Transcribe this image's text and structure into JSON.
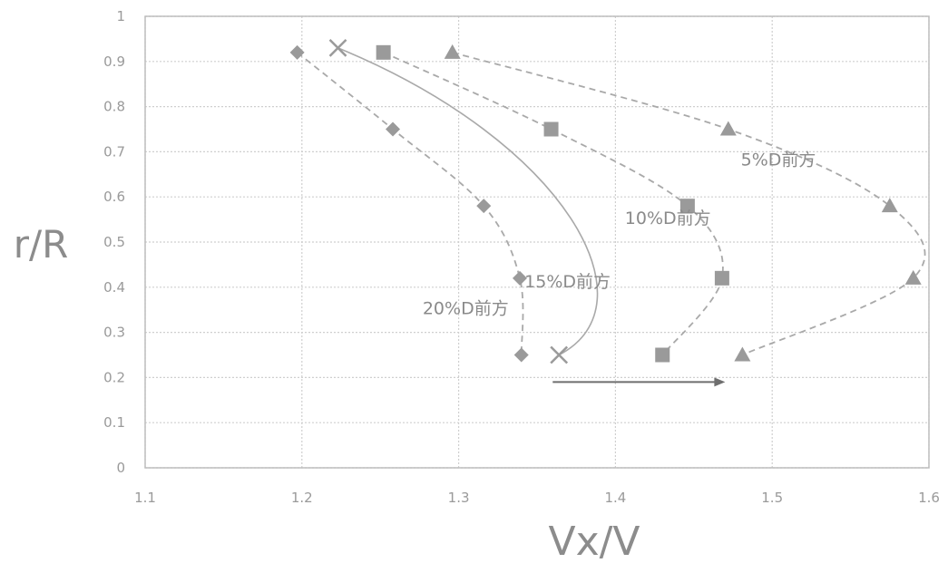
{
  "chart_data": {
    "type": "scatter",
    "title": "",
    "xlabel": "Vx/V",
    "ylabel": "r/R",
    "xlim": [
      1.1,
      1.6
    ],
    "ylim": [
      0,
      1
    ],
    "xticks": [
      "1.1",
      "1.2",
      "1.3",
      "1.4",
      "1.5",
      "1.6"
    ],
    "yticks": [
      "0",
      "0.1",
      "0.2",
      "0.3",
      "0.4",
      "0.5",
      "0.6",
      "0.7",
      "0.8",
      "0.9",
      "1"
    ],
    "grid": true,
    "series": [
      {
        "marker": "diamond",
        "line": "dashed",
        "points": [
          {
            "x": 1.197,
            "y": 0.92
          },
          {
            "x": 1.258,
            "y": 0.75
          },
          {
            "x": 1.316,
            "y": 0.58
          },
          {
            "x": 1.339,
            "y": 0.42
          },
          {
            "x": 1.34,
            "y": 0.25
          }
        ]
      },
      {
        "marker": "x",
        "line": "solid",
        "points": [
          {
            "x": 1.223,
            "y": 0.93
          },
          {
            "x": 1.364,
            "y": 0.25
          }
        ]
      },
      {
        "marker": "square",
        "line": "dashed",
        "points": [
          {
            "x": 1.252,
            "y": 0.92
          },
          {
            "x": 1.359,
            "y": 0.75
          },
          {
            "x": 1.446,
            "y": 0.58
          },
          {
            "x": 1.468,
            "y": 0.42
          },
          {
            "x": 1.43,
            "y": 0.25
          }
        ]
      },
      {
        "marker": "triangle",
        "line": "dashed",
        "points": [
          {
            "x": 1.296,
            "y": 0.92
          },
          {
            "x": 1.472,
            "y": 0.75
          },
          {
            "x": 1.575,
            "y": 0.58
          },
          {
            "x": 1.59,
            "y": 0.42
          },
          {
            "x": 1.481,
            "y": 0.25
          }
        ]
      }
    ],
    "annotations": [
      {
        "text": "5%D前方",
        "x": 1.48,
        "y": 0.67
      },
      {
        "text": "10%D前方",
        "x": 1.406,
        "y": 0.54
      },
      {
        "text": "15%D前方",
        "x": 1.342,
        "y": 0.4
      },
      {
        "text": "20%D前方",
        "x": 1.277,
        "y": 0.34
      }
    ],
    "arrow": {
      "from": [
        1.36,
        0.19
      ],
      "to": [
        1.47,
        0.19
      ]
    },
    "colors": {
      "marker": "#9a9a9a",
      "line": "#a9a9a9",
      "grid": "#cfcfcf",
      "text": "#8a8a8a",
      "arrow": "#6e6e6e"
    }
  }
}
